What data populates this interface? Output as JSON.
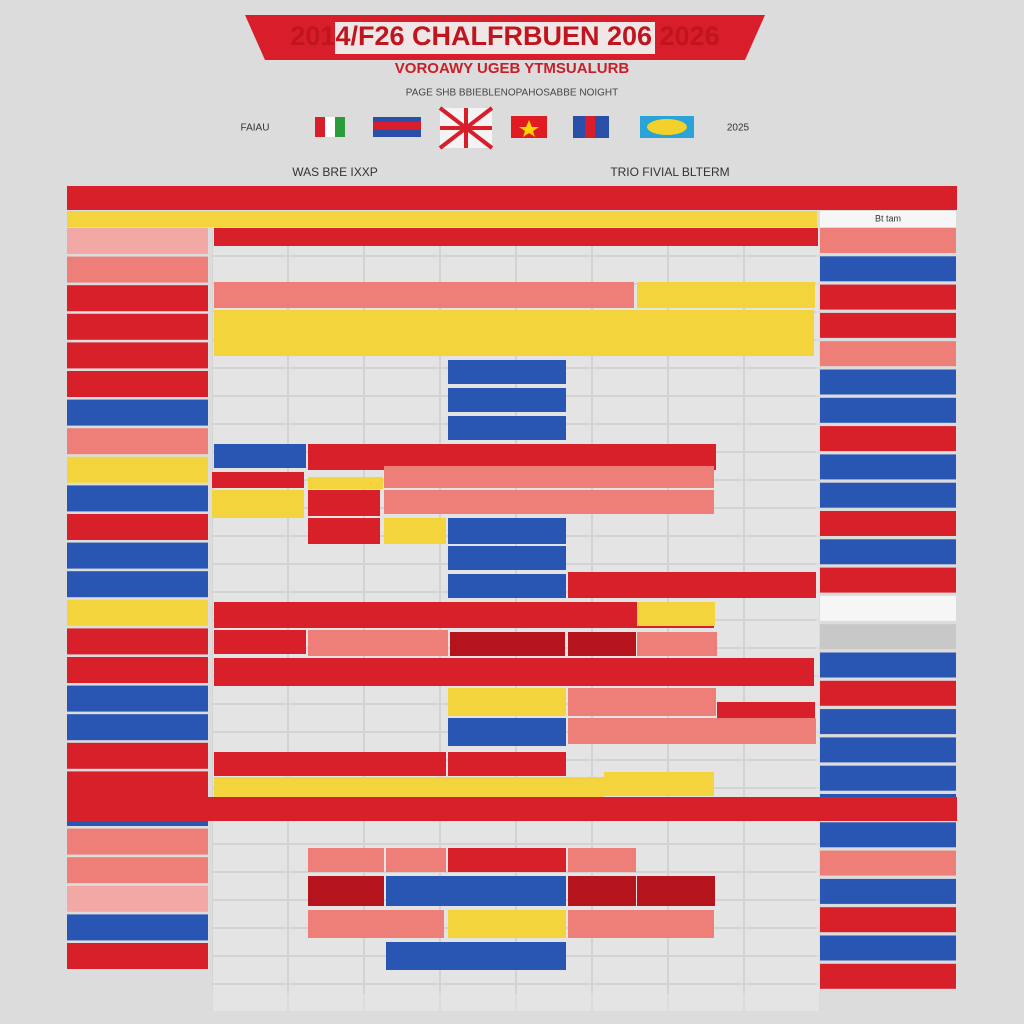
{
  "header": {
    "title": "2014/F26 CHALFRBUEN 206 2026",
    "subtitle": "VOROAWY UGEB YTMSUALURB",
    "tagline": "PAGE SHB BBIEBLENOPAHOSABBE NOIGHT"
  },
  "flags": {
    "left_label": "FAIAU",
    "right_label": "2025"
  },
  "schedule": {
    "left_heading": "WAS BRE IXXP",
    "right_heading": "TRIO FIVIAL BLTERM",
    "sidebar_title": "Bt tam"
  }
}
